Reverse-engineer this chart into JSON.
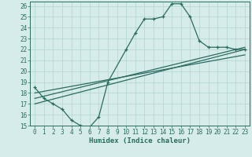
{
  "title": "",
  "xlabel": "Humidex (Indice chaleur)",
  "bg_color": "#d6eceb",
  "grid_color": "#b8d8d5",
  "line_color": "#2a6b60",
  "xlim": [
    -0.5,
    23.5
  ],
  "ylim": [
    15,
    26.4
  ],
  "xticks": [
    0,
    1,
    2,
    3,
    4,
    5,
    6,
    7,
    8,
    9,
    10,
    11,
    12,
    13,
    14,
    15,
    16,
    17,
    18,
    19,
    20,
    21,
    22,
    23
  ],
  "yticks": [
    15,
    16,
    17,
    18,
    19,
    20,
    21,
    22,
    23,
    24,
    25,
    26
  ],
  "series1_x": [
    0,
    1,
    2,
    3,
    4,
    5,
    6,
    7,
    8,
    10,
    11,
    12,
    13,
    14,
    15,
    16,
    17,
    18,
    19,
    20,
    21,
    22,
    23
  ],
  "series1_y": [
    18.5,
    17.5,
    17.0,
    16.5,
    15.5,
    15.0,
    14.85,
    15.8,
    19.0,
    22.0,
    23.5,
    24.8,
    24.8,
    25.0,
    26.2,
    26.2,
    25.0,
    22.8,
    22.2,
    22.2,
    22.2,
    22.0,
    22.0
  ],
  "series2_x": [
    0,
    23
  ],
  "series2_y": [
    17.0,
    22.0
  ],
  "series3_x": [
    0,
    23
  ],
  "series3_y": [
    17.5,
    22.2
  ],
  "series4_x": [
    0,
    23
  ],
  "series4_y": [
    18.0,
    21.5
  ]
}
